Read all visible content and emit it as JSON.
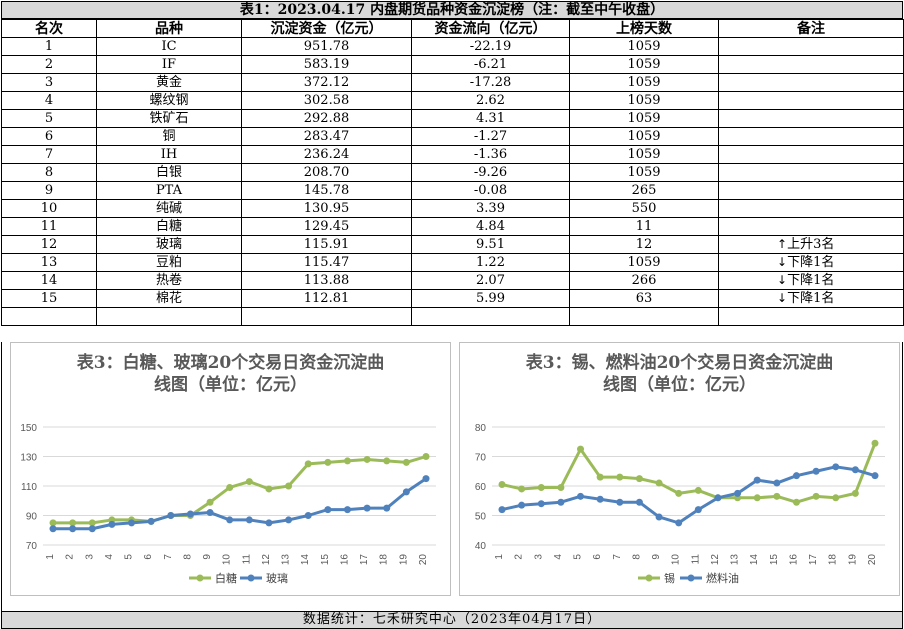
{
  "table": {
    "title": "表1：2023.04.17 内盘期货品种资金沉淀榜（注：截至中午收盘）",
    "headers": [
      "名次",
      "品种",
      "沉淀资金（亿元）",
      "资金流向（亿元）",
      "上榜天数",
      "备注"
    ],
    "rows": [
      {
        "rank": "1",
        "name": "IC",
        "funds": "951.78",
        "flow": "-22.19",
        "days": "1059",
        "note": "",
        "arrow": ""
      },
      {
        "rank": "2",
        "name": "IF",
        "funds": "583.19",
        "flow": "-6.21",
        "days": "1059",
        "note": "",
        "arrow": ""
      },
      {
        "rank": "3",
        "name": "黄金",
        "funds": "372.12",
        "flow": "-17.28",
        "days": "1059",
        "note": "",
        "arrow": ""
      },
      {
        "rank": "4",
        "name": "螺纹钢",
        "funds": "302.58",
        "flow": "2.62",
        "days": "1059",
        "note": "",
        "arrow": ""
      },
      {
        "rank": "5",
        "name": "铁矿石",
        "funds": "292.88",
        "flow": "4.31",
        "days": "1059",
        "note": "",
        "arrow": ""
      },
      {
        "rank": "6",
        "name": "铜",
        "funds": "283.47",
        "flow": "-1.27",
        "days": "1059",
        "note": "",
        "arrow": ""
      },
      {
        "rank": "7",
        "name": "IH",
        "funds": "236.24",
        "flow": "-1.36",
        "days": "1059",
        "note": "",
        "arrow": ""
      },
      {
        "rank": "8",
        "name": "白银",
        "funds": "208.70",
        "flow": "-9.26",
        "days": "1059",
        "note": "",
        "arrow": ""
      },
      {
        "rank": "9",
        "name": "PTA",
        "funds": "145.78",
        "flow": "-0.08",
        "days": "265",
        "note": "",
        "arrow": ""
      },
      {
        "rank": "10",
        "name": "纯碱",
        "funds": "130.95",
        "flow": "3.39",
        "days": "550",
        "note": "",
        "arrow": ""
      },
      {
        "rank": "11",
        "name": "白糖",
        "funds": "129.45",
        "flow": "4.84",
        "days": "11",
        "note": "",
        "arrow": ""
      },
      {
        "rank": "12",
        "name": "玻璃",
        "funds": "115.91",
        "flow": "9.51",
        "days": "12",
        "note": "上升3名",
        "arrow": "↑"
      },
      {
        "rank": "13",
        "name": "豆粕",
        "funds": "115.47",
        "flow": "1.22",
        "days": "1059",
        "note": "下降1名",
        "arrow": "↓"
      },
      {
        "rank": "14",
        "name": "热卷",
        "funds": "113.88",
        "flow": "2.07",
        "days": "266",
        "note": "下降1名",
        "arrow": "↓"
      },
      {
        "rank": "15",
        "name": "棉花",
        "funds": "112.81",
        "flow": "5.99",
        "days": "63",
        "note": "下降1名",
        "arrow": "↓"
      }
    ]
  },
  "footer": {
    "text": "数据统计：七禾研究中心（2023年04月17日）"
  },
  "colors": {
    "green": "#9bbb59",
    "blue": "#4f81bd",
    "header_bg": "#d9d9d9"
  },
  "chart_data": [
    {
      "type": "line",
      "title_line1": "表3：白糖、玻璃20个交易日资金沉淀曲",
      "title_line2": "线图（单位：亿元）",
      "categories": [
        "1",
        "2",
        "3",
        "4",
        "5",
        "6",
        "7",
        "8",
        "9",
        "10",
        "11",
        "12",
        "13",
        "14",
        "15",
        "16",
        "17",
        "18",
        "19",
        "20"
      ],
      "yticks": [
        70,
        90,
        110,
        130,
        150
      ],
      "ylim": [
        70,
        150
      ],
      "grid": true,
      "legend": "bottom",
      "series": [
        {
          "name": "白糖",
          "color": "#9bbb59",
          "values": [
            85,
            85,
            85,
            87,
            87,
            86,
            90,
            90,
            99,
            109,
            113,
            108,
            110,
            125,
            126,
            127,
            128,
            127,
            126,
            130
          ]
        },
        {
          "name": "玻璃",
          "color": "#4f81bd",
          "values": [
            81,
            81,
            81,
            84,
            85,
            86,
            90,
            91,
            92,
            87,
            87,
            85,
            87,
            90,
            94,
            94,
            95,
            95,
            106,
            115
          ]
        }
      ]
    },
    {
      "type": "line",
      "title_line1": "表3：锡、燃料油20个交易日资金沉淀曲",
      "title_line2": "线图（单位：亿元）",
      "categories": [
        "1",
        "2",
        "3",
        "4",
        "5",
        "6",
        "7",
        "8",
        "9",
        "10",
        "11",
        "12",
        "13",
        "14",
        "15",
        "16",
        "17",
        "18",
        "19",
        "20"
      ],
      "yticks": [
        40,
        50,
        60,
        70,
        80
      ],
      "ylim": [
        40,
        80
      ],
      "grid": true,
      "legend": "bottom",
      "series": [
        {
          "name": "锡",
          "color": "#9bbb59",
          "values": [
            60.5,
            59,
            59.5,
            59.5,
            72.5,
            63,
            63,
            62.5,
            61,
            57.5,
            58.5,
            56,
            56,
            56,
            56.5,
            54.5,
            56.5,
            56,
            57.5,
            74.5
          ]
        },
        {
          "name": "燃料油",
          "color": "#4f81bd",
          "values": [
            52,
            53.5,
            54,
            54.5,
            56.5,
            55.5,
            54.5,
            54.5,
            49.5,
            47.5,
            52,
            56,
            57.5,
            62,
            61,
            63.5,
            65,
            66.5,
            65.5,
            63.5
          ]
        }
      ]
    }
  ]
}
